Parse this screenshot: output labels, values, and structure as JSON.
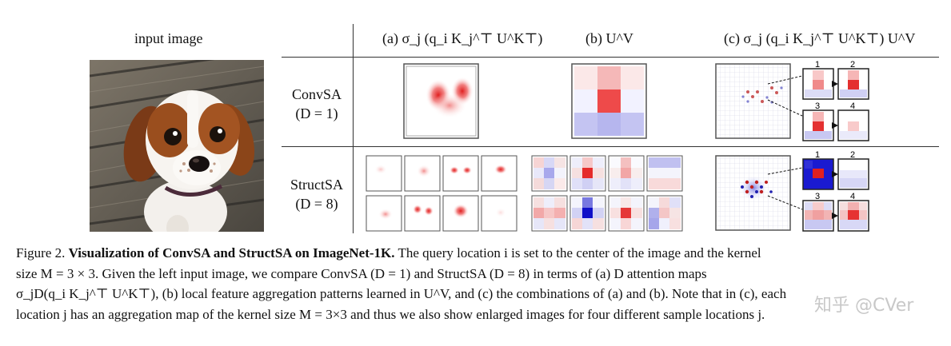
{
  "figure": {
    "input_label": "input image",
    "col_a": "(a) σ_j (q_i K_j^⊤ U^K⊤)",
    "col_b": "(b) U^V",
    "col_c": "(c) σ_j (q_i K_j^⊤ U^K⊤) U^V",
    "rows": [
      {
        "name": "ConvSA",
        "param": "(D = 1)"
      },
      {
        "name": "StructSA",
        "param": "(D = 8)"
      }
    ],
    "inset_numbers": [
      "1",
      "2",
      "3",
      "4"
    ]
  },
  "caption": {
    "prefix": "Figure 2.",
    "title": "Visualization of ConvSA and StructSA on ImageNet-1K.",
    "line1": "The query location i is set to the center of the image and the kernel",
    "line2": "size M = 3 × 3. Given the left input image, we compare ConvSA (D = 1) and StructSA (D = 8) in terms of (a) D attention maps",
    "line3": "σ_jD(q_i K_j^⊤ U^K⊤), (b) local feature aggregation patterns learned in U^V, and (c) the combinations of (a) and (b). Note that in (c), each",
    "line4": "location j has an aggregation map of the kernel size M = 3×3 and thus we also show enlarged images for four different sample locations j."
  },
  "watermark": "知乎 @CVer"
}
